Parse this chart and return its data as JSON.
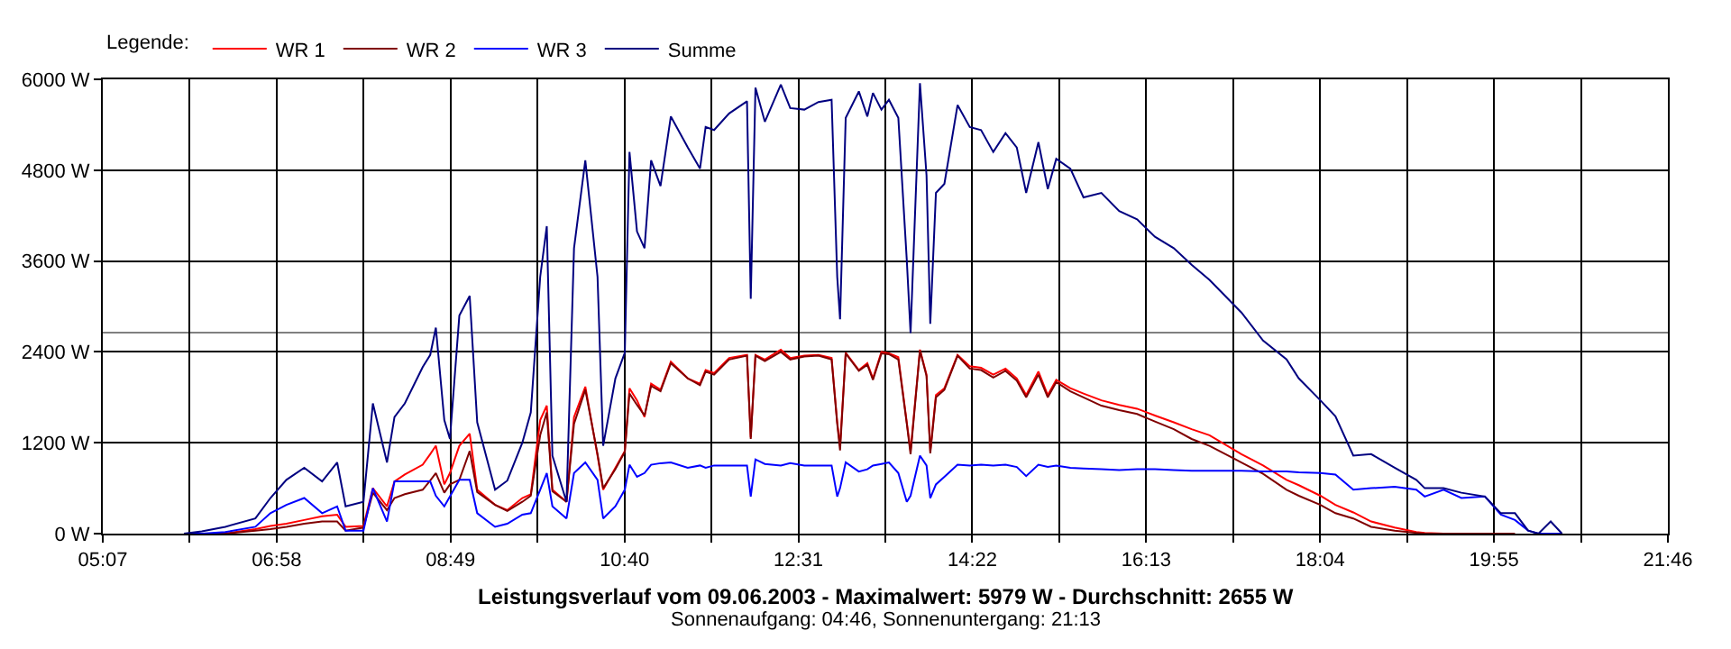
{
  "chart_data": {
    "type": "line",
    "title": "Leistungsverlauf vom 09.06.2003 - Maximalwert: 5979 W - Durchschnitt: 2655 W",
    "subtitle": "Sonnenaufgang: 04:46, Sonnenuntergang: 21:13",
    "legend_title": "Legende:",
    "legend": "top left",
    "grid": true,
    "marker": "none",
    "line_style": "solid",
    "xlim": [
      5.1167,
      21.7667
    ],
    "xticks": [
      {
        "value": 5.1167,
        "label": "05:07"
      },
      {
        "value": 6.0417,
        "label": null
      },
      {
        "value": 6.9667,
        "label": "06:58"
      },
      {
        "value": 7.8917,
        "label": null
      },
      {
        "value": 8.8167,
        "label": "08:49"
      },
      {
        "value": 9.7417,
        "label": null
      },
      {
        "value": 10.6667,
        "label": "10:40"
      },
      {
        "value": 11.5917,
        "label": null
      },
      {
        "value": 12.5167,
        "label": "12:31"
      },
      {
        "value": 13.4417,
        "label": null
      },
      {
        "value": 14.3667,
        "label": "14:22"
      },
      {
        "value": 15.2917,
        "label": null
      },
      {
        "value": 16.2167,
        "label": "16:13"
      },
      {
        "value": 17.1417,
        "label": null
      },
      {
        "value": 18.0667,
        "label": "18:04"
      },
      {
        "value": 18.9917,
        "label": null
      },
      {
        "value": 19.9167,
        "label": "19:55"
      },
      {
        "value": 20.8417,
        "label": null
      },
      {
        "value": 21.7667,
        "label": "21:46"
      }
    ],
    "ylim": [
      0,
      6000
    ],
    "yticks": [
      {
        "value": 0,
        "label": "0 W"
      },
      {
        "value": 1200,
        "label": "1200 W"
      },
      {
        "value": 2400,
        "label": "2400 W"
      },
      {
        "value": 3600,
        "label": "3600 W"
      },
      {
        "value": 4800,
        "label": "4800 W"
      },
      {
        "value": 6000,
        "label": "6000 W"
      }
    ],
    "ref_lines": [
      {
        "axis": "y",
        "value": 2655,
        "color": "#808080"
      }
    ],
    "x": [
      5.98,
      6.17,
      6.42,
      6.74,
      6.9,
      7.07,
      7.26,
      7.45,
      7.61,
      7.7,
      7.89,
      7.99,
      8.14,
      8.22,
      8.33,
      8.52,
      8.6,
      8.66,
      8.75,
      8.81,
      8.91,
      9.02,
      9.1,
      9.29,
      9.42,
      9.58,
      9.67,
      9.77,
      9.84,
      9.9,
      10.05,
      10.13,
      10.25,
      10.38,
      10.44,
      10.57,
      10.67,
      10.72,
      10.8,
      10.88,
      10.95,
      11.05,
      11.16,
      11.34,
      11.47,
      11.53,
      11.62,
      11.78,
      11.97,
      12.01,
      12.06,
      12.16,
      12.33,
      12.43,
      12.58,
      12.73,
      12.87,
      12.93,
      12.96,
      13.02,
      13.16,
      13.25,
      13.31,
      13.4,
      13.48,
      13.58,
      13.67,
      13.71,
      13.81,
      13.88,
      13.92,
      13.98,
      14.07,
      14.21,
      14.34,
      14.46,
      14.59,
      14.72,
      14.84,
      14.94,
      15.07,
      15.17,
      15.26,
      15.41,
      15.55,
      15.74,
      15.93,
      16.12,
      16.31,
      16.51,
      16.7,
      16.89,
      17.23,
      17.46,
      17.71,
      17.84,
      18.07,
      18.23,
      18.42,
      18.61,
      18.86,
      19.09,
      19.18,
      19.38,
      19.57,
      19.82,
      19.99,
      20.14,
      20.28,
      20.39,
      20.52,
      20.64
    ],
    "series": [
      {
        "name": "WR 1",
        "color": "#ff0000",
        "values": [
          0,
          0,
          0,
          60,
          100,
          130,
          180,
          230,
          250,
          90,
          100,
          600,
          360,
          690,
          780,
          910,
          1050,
          1160,
          650,
          800,
          1160,
          1320,
          580,
          380,
          310,
          470,
          520,
          1500,
          1690,
          580,
          420,
          1540,
          1940,
          1030,
          580,
          870,
          1090,
          1920,
          1760,
          1540,
          1980,
          1900,
          2270,
          2050,
          1980,
          2160,
          2120,
          2320,
          2360,
          1270,
          2360,
          2300,
          2430,
          2320,
          2350,
          2360,
          2320,
          1470,
          1160,
          2390,
          2160,
          2250,
          2050,
          2400,
          2380,
          2330,
          1470,
          1090,
          2430,
          2100,
          1090,
          1830,
          1920,
          2360,
          2210,
          2190,
          2100,
          2180,
          2050,
          1830,
          2140,
          1830,
          2030,
          1920,
          1850,
          1760,
          1700,
          1650,
          1560,
          1470,
          1380,
          1300,
          1050,
          900,
          710,
          640,
          500,
          380,
          280,
          160,
          80,
          20,
          10,
          0,
          0,
          null,
          null,
          null,
          null,
          null,
          null,
          null
        ]
      },
      {
        "name": "WR 2",
        "color": "#800000",
        "values": [
          0,
          0,
          0,
          40,
          60,
          90,
          130,
          160,
          160,
          40,
          80,
          540,
          310,
          470,
          520,
          580,
          700,
          800,
          540,
          650,
          710,
          1090,
          550,
          380,
          300,
          420,
          500,
          1300,
          1600,
          560,
          420,
          1450,
          1900,
          1050,
          600,
          850,
          1080,
          1850,
          1700,
          1560,
          1950,
          1880,
          2250,
          2050,
          1960,
          2140,
          2100,
          2300,
          2350,
          1250,
          2350,
          2280,
          2400,
          2300,
          2340,
          2350,
          2300,
          1450,
          1100,
          2380,
          2150,
          2230,
          2030,
          2380,
          2370,
          2300,
          1450,
          1050,
          2420,
          2080,
          1060,
          1800,
          1900,
          2350,
          2180,
          2160,
          2060,
          2150,
          2020,
          1800,
          2100,
          1800,
          2000,
          1880,
          1800,
          1690,
          1630,
          1580,
          1480,
          1380,
          1250,
          1160,
          940,
          790,
          580,
          500,
          380,
          270,
          200,
          90,
          40,
          10,
          0,
          0,
          0,
          0,
          0,
          0,
          null,
          null,
          null,
          null
        ]
      },
      {
        "name": "WR 3",
        "color": "#0000ff",
        "values": [
          0,
          0,
          20,
          90,
          270,
          380,
          470,
          270,
          360,
          40,
          40,
          600,
          160,
          690,
          690,
          690,
          690,
          500,
          360,
          490,
          710,
          710,
          270,
          90,
          130,
          250,
          270,
          580,
          800,
          360,
          200,
          800,
          940,
          710,
          200,
          360,
          580,
          910,
          750,
          800,
          910,
          930,
          940,
          870,
          900,
          870,
          900,
          900,
          900,
          490,
          980,
          920,
          900,
          930,
          900,
          900,
          900,
          490,
          600,
          940,
          820,
          850,
          900,
          920,
          940,
          800,
          420,
          500,
          1030,
          900,
          470,
          650,
          750,
          910,
          900,
          910,
          900,
          910,
          880,
          760,
          910,
          880,
          900,
          870,
          860,
          850,
          840,
          850,
          850,
          840,
          830,
          830,
          830,
          820,
          820,
          810,
          800,
          780,
          580,
          600,
          620,
          580,
          490,
          580,
          470,
          490,
          250,
          180,
          40,
          0,
          0,
          0
        ]
      },
      {
        "name": "Summe",
        "color": "#000080",
        "values": [
          0,
          30,
          90,
          200,
          470,
          710,
          870,
          690,
          940,
          360,
          420,
          1720,
          940,
          1540,
          1720,
          2200,
          2360,
          2720,
          1500,
          1250,
          2880,
          3140,
          1470,
          580,
          700,
          1200,
          1600,
          3390,
          4060,
          1030,
          420,
          3770,
          4930,
          3390,
          1160,
          2050,
          2390,
          5040,
          3990,
          3770,
          4930,
          4590,
          5510,
          5100,
          4820,
          5370,
          5330,
          5550,
          5710,
          3100,
          5890,
          5440,
          5930,
          5620,
          5600,
          5700,
          5730,
          3390,
          2830,
          5490,
          5840,
          5510,
          5820,
          5600,
          5730,
          5490,
          3610,
          2650,
          5950,
          4730,
          2770,
          4500,
          4620,
          5660,
          5370,
          5330,
          5040,
          5290,
          5100,
          4500,
          5170,
          4550,
          4950,
          4820,
          4440,
          4500,
          4260,
          4150,
          3920,
          3770,
          3550,
          3350,
          2920,
          2550,
          2300,
          2050,
          1760,
          1550,
          1030,
          1050,
          870,
          710,
          600,
          600,
          540,
          490,
          270,
          270,
          40,
          0,
          160,
          0
        ]
      }
    ]
  }
}
